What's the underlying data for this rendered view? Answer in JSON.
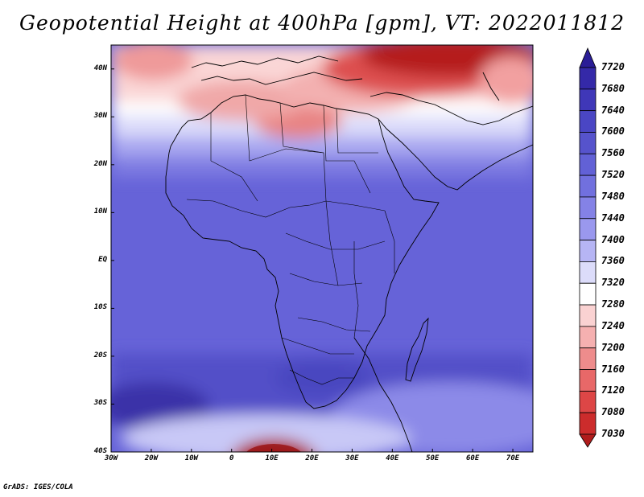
{
  "title": "Geopotential Height at 400hPa [gpm], VT: 2022011812",
  "credit": "GrADS: IGES/COLA",
  "map": {
    "lat_ticks": [
      "40N",
      "30N",
      "20N",
      "10N",
      "EQ",
      "10S",
      "20S",
      "30S",
      "40S"
    ],
    "lon_ticks": [
      "30W",
      "20W",
      "10W",
      "0",
      "10E",
      "20E",
      "30E",
      "40E",
      "50E",
      "60E",
      "70E"
    ],
    "lon_range": [
      -30,
      75
    ],
    "lat_range": [
      -40,
      45
    ],
    "field": "400hPa geopotential height",
    "colors": {
      "high": "#2020a8",
      "low": "#b01818",
      "mid": "#ffffff"
    }
  },
  "colorbar": {
    "labels": [
      "7720",
      "7680",
      "7640",
      "7600",
      "7560",
      "7520",
      "7480",
      "7440",
      "7400",
      "7360",
      "7320",
      "7280",
      "7240",
      "7200",
      "7160",
      "7120",
      "7080",
      "7030"
    ],
    "colors": [
      "#2a1d96",
      "#3429a8",
      "#3f37b8",
      "#4a46c4",
      "#5653cc",
      "#6261d6",
      "#7170de",
      "#8482e6",
      "#9a98ee",
      "#b6b5f4",
      "#dcdcfa",
      "#ffffff",
      "#fad2d2",
      "#f5b0b0",
      "#ee8c8c",
      "#e86868",
      "#dd4646",
      "#cc2c2c",
      "#b01c1c"
    ]
  }
}
